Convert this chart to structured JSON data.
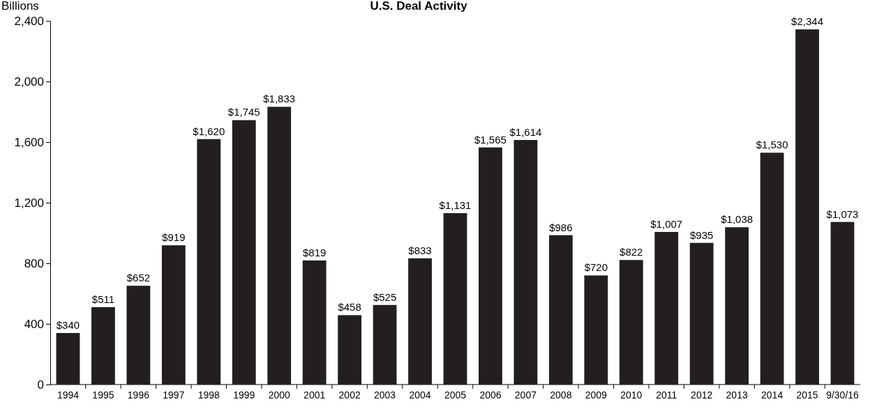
{
  "chart_data": {
    "type": "bar",
    "title": "U.S. Deal Activity",
    "ylabel": "Billions",
    "categories": [
      "1994",
      "1995",
      "1996",
      "1997",
      "1998",
      "1999",
      "2000",
      "2001",
      "2002",
      "2003",
      "2004",
      "2005",
      "2006",
      "2007",
      "2008",
      "2009",
      "2010",
      "2011",
      "2012",
      "2013",
      "2014",
      "2015",
      "9/30/16"
    ],
    "values": [
      340,
      511,
      652,
      919,
      1620,
      1745,
      1833,
      819,
      458,
      525,
      833,
      1131,
      1565,
      1614,
      986,
      720,
      822,
      1007,
      935,
      1038,
      1530,
      2344,
      1073
    ],
    "value_labels": [
      "$340",
      "$511",
      "$652",
      "$919",
      "$1,620",
      "$1,745",
      "$1,833",
      "$819",
      "$458",
      "$525",
      "$833",
      "$1,131",
      "$1,565",
      "$1,614",
      "$986",
      "$720",
      "$822",
      "$1,007",
      "$935",
      "$1,038",
      "$1,530",
      "$2,344",
      "$1,073"
    ],
    "color": "#231f20",
    "ylim": [
      0,
      2400
    ],
    "yticks": [
      0,
      400,
      800,
      {
        "value": 1200,
        "label": "1,200"
      },
      {
        "value": 1600,
        "label": "1,600"
      },
      {
        "value": 2000,
        "label": "2,000"
      },
      {
        "value": 2400,
        "label": "2,400"
      }
    ],
    "grid": false
  }
}
